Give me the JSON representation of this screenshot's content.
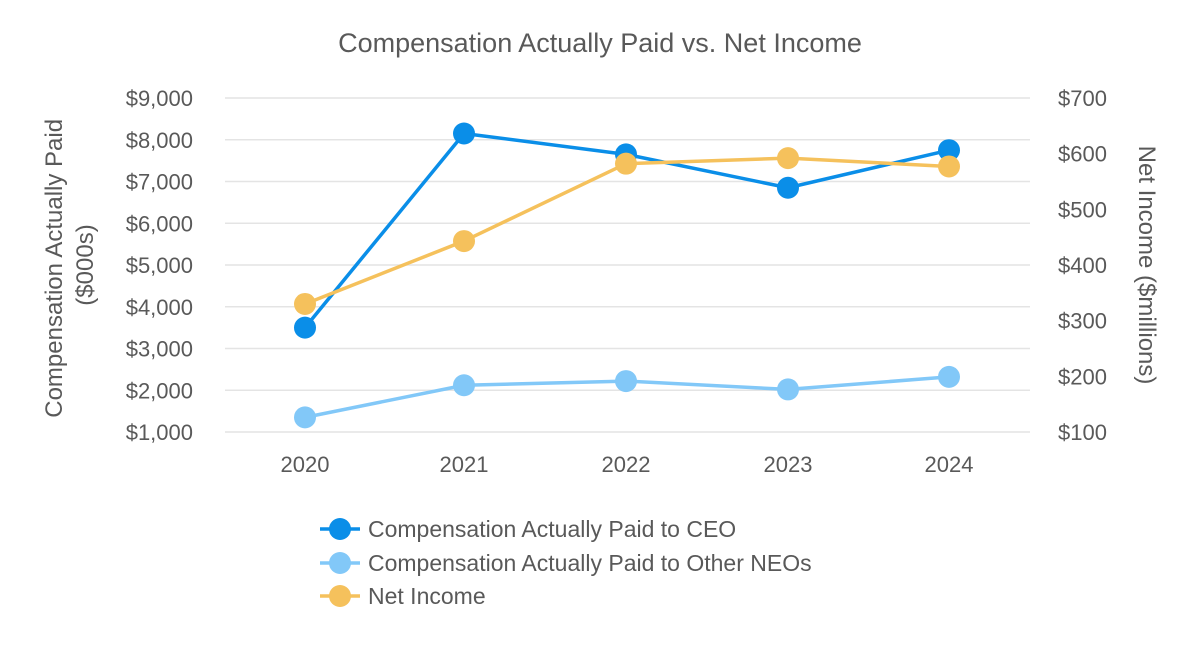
{
  "chart_data": {
    "type": "line",
    "title": "Compensation Actually Paid vs. Net Income",
    "categories": [
      "2020",
      "2021",
      "2022",
      "2023",
      "2024"
    ],
    "y_left": {
      "label_lines": [
        "Compensation Actually Paid",
        "($000s)"
      ],
      "ticks": [
        1000,
        2000,
        3000,
        4000,
        5000,
        6000,
        7000,
        8000,
        9000
      ],
      "tick_labels": [
        "$1,000",
        "$2,000",
        "$3,000",
        "$4,000",
        "$5,000",
        "$6,000",
        "$7,000",
        "$8,000",
        "$9,000"
      ],
      "ylim": [
        1000,
        9000
      ]
    },
    "y_right": {
      "label": "Net Income ($millions)",
      "ticks": [
        100,
        200,
        300,
        400,
        500,
        600,
        700
      ],
      "tick_labels": [
        "$100",
        "$200",
        "$300",
        "$400",
        "$500",
        "$600",
        "$700"
      ],
      "ylim": [
        100,
        700
      ]
    },
    "series": [
      {
        "name": "Compensation Actually Paid to CEO",
        "axis": "left",
        "color": "#0a8ee8",
        "values": [
          3500,
          8150,
          7650,
          6850,
          7750
        ]
      },
      {
        "name": "Compensation Actually Paid to Other NEOs",
        "axis": "left",
        "color": "#82c8f8",
        "values": [
          1350,
          2120,
          2220,
          2020,
          2320
        ]
      },
      {
        "name": "Net Income",
        "axis": "right",
        "color": "#f5c15c",
        "values": [
          330,
          443,
          582,
          592,
          577
        ]
      }
    ],
    "grid": true,
    "legend_position": "bottom"
  }
}
